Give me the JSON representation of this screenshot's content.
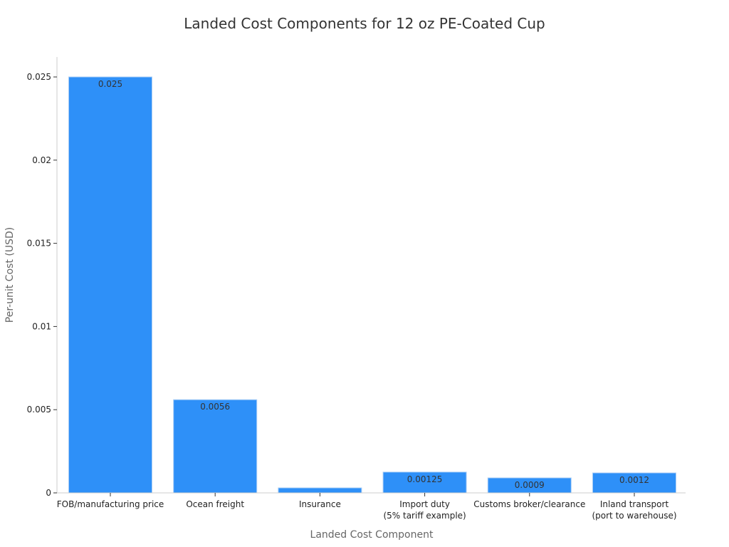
{
  "chart_data": {
    "type": "bar",
    "title": "Landed Cost Components for 12 oz PE-Coated Cup",
    "xlabel": "Landed Cost Component",
    "ylabel": "Per-unit Cost (USD)",
    "categories": [
      [
        "FOB/manufacturing price"
      ],
      [
        "Ocean freight"
      ],
      [
        "Insurance"
      ],
      [
        "Import duty",
        "(5% tariff example)"
      ],
      [
        "Customs broker/clearance"
      ],
      [
        "Inland transport",
        "(port to warehouse)"
      ]
    ],
    "values": [
      0.025,
      0.0056,
      0.0003,
      0.00125,
      0.0009,
      0.0012
    ],
    "data_labels": [
      "0.025",
      "0.0056",
      "",
      "0.00125",
      "0.0009",
      "0.0012"
    ],
    "ylim": [
      0,
      0.0262
    ],
    "yticks": [
      0,
      0.005,
      0.01,
      0.015,
      0.02,
      0.025
    ],
    "ytick_labels": [
      "0",
      "0.005",
      "0.01",
      "0.015",
      "0.02",
      "0.025"
    ],
    "grid": false,
    "bar_color": "#2E90F8",
    "bar_edge_color": "#a9cdf5"
  }
}
